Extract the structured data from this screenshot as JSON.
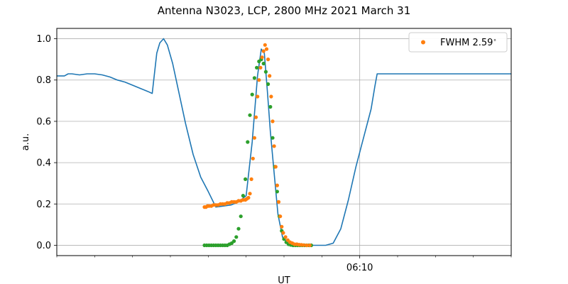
{
  "chart_data": {
    "type": "line",
    "title": "Antenna N3023, LCP, 2800 MHz 2021 March 31",
    "xlabel": "UT",
    "ylabel": "a.u.",
    "xlim": [
      0,
      60
    ],
    "ylim": [
      -0.05,
      1.05
    ],
    "yticks": [
      0.0,
      0.2,
      0.4,
      0.6,
      0.8,
      1.0
    ],
    "ytick_labels": [
      "0.0",
      "0.2",
      "0.4",
      "0.6",
      "0.8",
      "1.0"
    ],
    "x_major_ticks": [
      {
        "x": 40,
        "label": "06:10"
      }
    ],
    "x_minor_ticks": [
      0,
      5,
      10,
      15,
      20,
      25,
      30,
      35,
      45,
      50,
      55,
      60
    ],
    "grid": true,
    "legend_position": "top-right",
    "colors": {
      "line": "#1f77b4",
      "orange": "#ff7f0e",
      "green": "#2ca02c"
    },
    "series": [
      {
        "kind": "line",
        "color": "#1f77b4",
        "x": [
          0,
          1,
          1.5,
          2,
          3,
          4,
          5,
          6,
          7,
          8,
          9,
          10,
          11,
          12,
          12.6,
          13.2,
          13.6,
          14.1,
          14.6,
          15.3,
          16,
          17,
          18,
          19,
          20,
          21,
          22,
          23,
          24,
          25,
          25.8,
          26.5,
          27,
          27.4,
          27.8,
          28.2,
          28.7,
          29.2,
          29.8,
          30.5,
          31.5,
          33,
          34.5,
          35.5,
          36.5,
          37.5,
          38.5,
          39.5,
          40.5,
          41.5,
          42,
          42.3,
          43,
          45,
          50,
          55,
          60
        ],
        "y": [
          0.82,
          0.82,
          0.83,
          0.83,
          0.825,
          0.83,
          0.83,
          0.825,
          0.815,
          0.8,
          0.79,
          0.775,
          0.76,
          0.745,
          0.735,
          0.93,
          0.98,
          1.0,
          0.97,
          0.88,
          0.76,
          0.59,
          0.44,
          0.33,
          0.26,
          0.185,
          0.19,
          0.195,
          0.21,
          0.24,
          0.5,
          0.82,
          0.95,
          0.93,
          0.75,
          0.55,
          0.35,
          0.15,
          0.04,
          0.01,
          0.0,
          0.0,
          0.0,
          0.0,
          0.01,
          0.08,
          0.22,
          0.38,
          0.52,
          0.66,
          0.77,
          0.83,
          0.83,
          0.83,
          0.83,
          0.83,
          0.83
        ]
      },
      {
        "kind": "scatter",
        "name": "FWHM 2.59$^\\circ$",
        "color": "#ff7f0e",
        "x": [
          19.5,
          19.7,
          19.9,
          20.1,
          20.4,
          20.7,
          21.0,
          21.3,
          21.6,
          21.9,
          22.2,
          22.5,
          22.8,
          23.1,
          23.4,
          23.7,
          24.0,
          24.3,
          24.6,
          24.9,
          25.1,
          25.3,
          25.5,
          25.7,
          25.9,
          26.1,
          26.3,
          26.5,
          26.7,
          26.9,
          27.1,
          27.3,
          27.5,
          27.7,
          27.9,
          28.1,
          28.3,
          28.5,
          28.7,
          28.9,
          29.1,
          29.3,
          29.5,
          29.7,
          29.9,
          30.2,
          30.5,
          30.8,
          31.1,
          31.4,
          31.7,
          32.0,
          32.3,
          32.6,
          33.0,
          33.4
        ],
        "y": [
          0.185,
          0.185,
          0.19,
          0.19,
          0.19,
          0.195,
          0.195,
          0.195,
          0.2,
          0.2,
          0.2,
          0.205,
          0.205,
          0.21,
          0.21,
          0.21,
          0.215,
          0.215,
          0.22,
          0.22,
          0.225,
          0.23,
          0.25,
          0.32,
          0.42,
          0.52,
          0.62,
          0.72,
          0.8,
          0.86,
          0.91,
          0.94,
          0.97,
          0.95,
          0.9,
          0.82,
          0.72,
          0.6,
          0.48,
          0.38,
          0.29,
          0.21,
          0.14,
          0.09,
          0.06,
          0.04,
          0.025,
          0.015,
          0.01,
          0.005,
          0.005,
          0.003,
          0.002,
          0.001,
          0.0,
          0.0
        ]
      },
      {
        "kind": "scatter",
        "name": "",
        "color": "#2ca02c",
        "x": [
          19.5,
          19.8,
          20.1,
          20.4,
          20.7,
          21.0,
          21.3,
          21.6,
          21.9,
          22.2,
          22.5,
          22.8,
          23.1,
          23.4,
          23.7,
          24.0,
          24.3,
          24.6,
          24.9,
          25.2,
          25.5,
          25.8,
          26.1,
          26.4,
          26.7,
          27.0,
          27.3,
          27.6,
          27.9,
          28.2,
          28.5,
          28.8,
          29.1,
          29.4,
          29.7,
          30.0,
          30.3,
          30.6,
          30.9,
          31.2,
          31.5,
          31.8,
          32.1,
          32.4,
          32.7,
          33.0,
          33.3,
          33.6
        ],
        "y": [
          0.0,
          0.0,
          0.0,
          0.0,
          0.0,
          0.0,
          0.0,
          0.0,
          0.0,
          0.0,
          0.0,
          0.005,
          0.01,
          0.02,
          0.04,
          0.08,
          0.14,
          0.24,
          0.32,
          0.5,
          0.63,
          0.73,
          0.81,
          0.86,
          0.89,
          0.9,
          0.88,
          0.84,
          0.78,
          0.67,
          0.52,
          0.38,
          0.26,
          0.14,
          0.07,
          0.03,
          0.015,
          0.005,
          0.002,
          0.0,
          0.0,
          0.0,
          0.0,
          0.0,
          0.0,
          0.0,
          0.0,
          0.0
        ]
      }
    ]
  }
}
